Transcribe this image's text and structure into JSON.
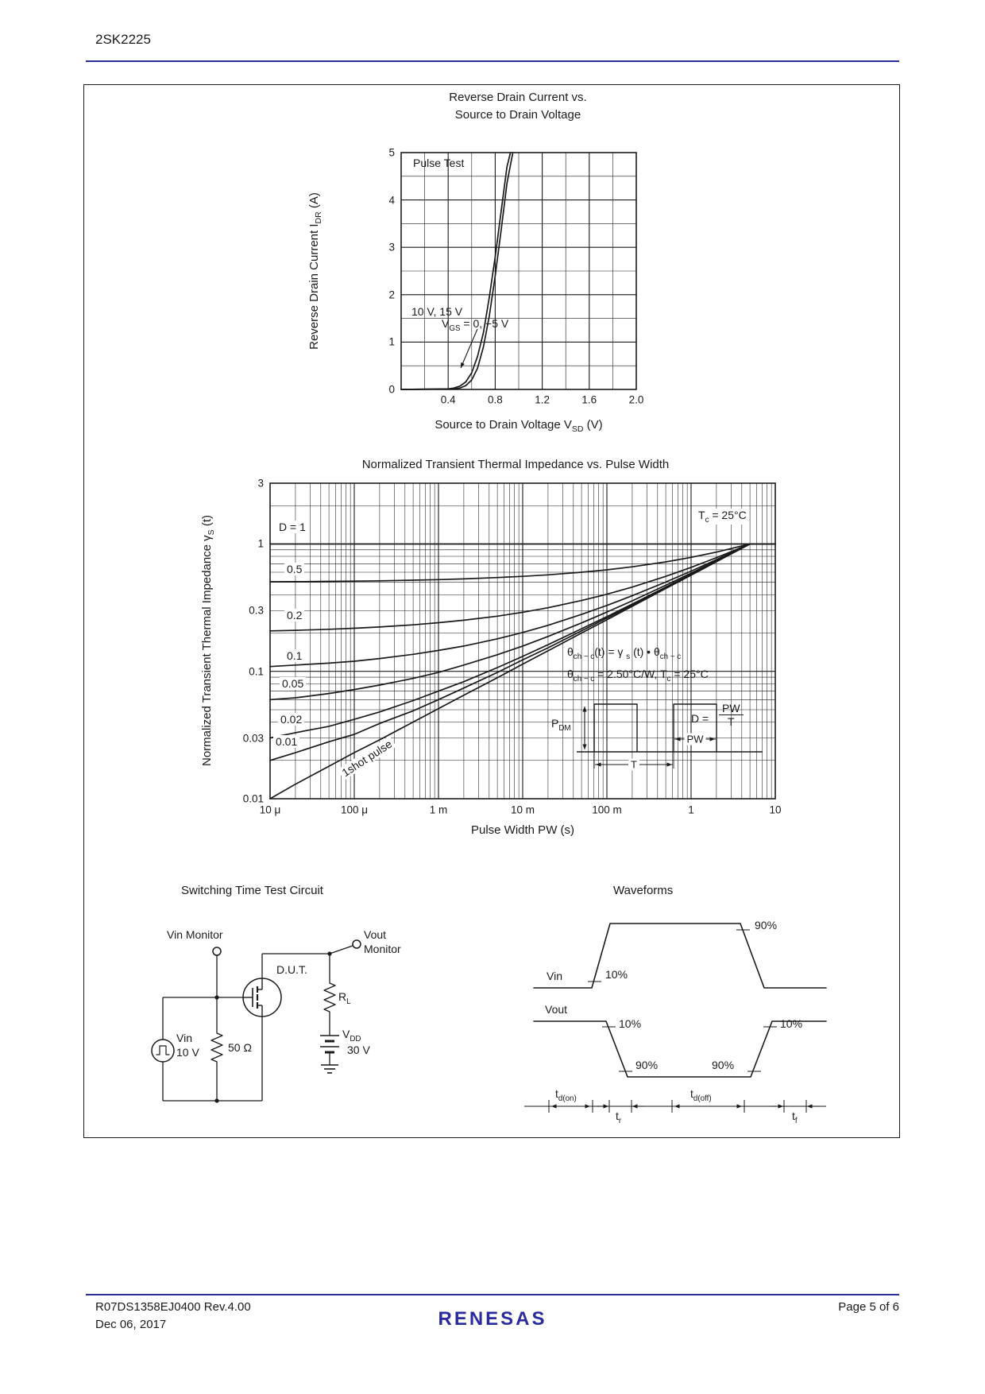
{
  "header": {
    "title": "2SK2225"
  },
  "footer": {
    "doc": "R07DS1358EJ0400  Rev.4.00",
    "date": "Dec 06, 2017",
    "brand": "RENESAS",
    "page": "Page 5 of 6"
  },
  "colors": {
    "accent": "#2b2ba0",
    "ink": "#1a1a1a"
  },
  "chart_data": [
    {
      "type": "line",
      "title_line1": "Reverse Drain Current vs.",
      "title_line2": "Source to Drain Voltage",
      "xlabel": {
        "pre": "Source to Drain Voltage  V",
        "sub": "SD",
        "post": "  (V)"
      },
      "ylabel": {
        "pre": "Reverse Drain Current  I",
        "sub": "DR",
        "post": "  (A)"
      },
      "xlim": [
        0,
        2.0
      ],
      "ylim": [
        0,
        5
      ],
      "xticks": [
        0.4,
        0.8,
        1.2,
        1.6,
        2.0
      ],
      "yticks": [
        0,
        1,
        2,
        3,
        4,
        5
      ],
      "annotations": {
        "pulse_test": "Pulse Test",
        "vgs_on": "10 V, 15 V",
        "vgs_off": {
          "pre": "V",
          "sub": "GS",
          "post": " = 0, −5 V"
        }
      },
      "series": [
        {
          "name": "VGS = 10 V, 15 V",
          "x": [
            0,
            0.4,
            0.45,
            0.5,
            0.55,
            0.6,
            0.65,
            0.7,
            0.75,
            0.8,
            0.85,
            0.9,
            0.93
          ],
          "y": [
            0,
            0.01,
            0.03,
            0.07,
            0.16,
            0.35,
            0.7,
            1.2,
            1.95,
            2.8,
            3.75,
            4.7,
            5.0
          ]
        },
        {
          "name": "VGS = 0 V, −5 V",
          "x": [
            0,
            0.45,
            0.5,
            0.55,
            0.6,
            0.65,
            0.7,
            0.75,
            0.8,
            0.85,
            0.9,
            0.95
          ],
          "y": [
            0,
            0.01,
            0.03,
            0.08,
            0.2,
            0.45,
            0.9,
            1.55,
            2.4,
            3.35,
            4.35,
            5.0
          ]
        }
      ]
    },
    {
      "type": "line",
      "xscale": "log",
      "yscale": "log",
      "title": "Normalized Transient Thermal Impedance vs. Pulse Width",
      "xlabel": "Pulse Width  PW  (s)",
      "ylabel": {
        "pre": "Normalized Transient Thermal Impedance  γ",
        "sub": "S",
        "post": "  (t)"
      },
      "xlim": [
        1e-05,
        10
      ],
      "ylim": [
        0.01,
        3
      ],
      "xtick_values": [
        1e-05,
        0.0001,
        0.001,
        0.01,
        0.1,
        1,
        10
      ],
      "xtick_labels": [
        "10 μ",
        "100 μ",
        "1 m",
        "10 m",
        "100 m",
        "1",
        "10"
      ],
      "ytick_values": [
        3,
        1,
        0.3,
        0.1,
        0.03,
        0.01
      ],
      "ytick_labels": [
        "3",
        "1",
        "0.3",
        "0.1",
        "0.03",
        "0.01"
      ],
      "condition": {
        "pre": "T",
        "sub": "c",
        "post": " = 25°C"
      },
      "curve_labels": [
        "D = 1",
        "0.5",
        "0.2",
        "0.1",
        "0.05",
        "0.02",
        "0.01"
      ],
      "oneshot_label": "1shot pulse",
      "formula1": {
        "a": "θ",
        "b": "ch − c",
        "c": "(t) = γ ",
        "d": "s",
        "e": " (t) • θ",
        "f": "ch − c"
      },
      "formula2": {
        "a": "θ",
        "b": "ch − c",
        "c": " = 2.50°C/W, T",
        "d": "c",
        "e": " = 25°C"
      },
      "inset": {
        "pdm_pre": "P",
        "pdm_sub": "DM",
        "pw": "PW",
        "t": "T",
        "d_label": "D =",
        "frac_num": "PW",
        "frac_den": "T"
      },
      "x": [
        1e-05,
        2e-05,
        5e-05,
        0.0001,
        0.0002,
        0.0005,
        0.001,
        0.002,
        0.005,
        0.01,
        0.02,
        0.05,
        0.1,
        0.2,
        0.5,
        1,
        2,
        5,
        10
      ],
      "series": [
        {
          "name": "D = 1",
          "values": [
            1,
            1,
            1,
            1,
            1,
            1,
            1,
            1,
            1,
            1,
            1,
            1,
            1,
            1,
            1,
            1,
            1,
            1,
            1
          ]
        },
        {
          "name": "D = 0.5",
          "values": [
            0.505,
            0.506,
            0.509,
            0.511,
            0.514,
            0.52,
            0.525,
            0.532,
            0.545,
            0.557,
            0.572,
            0.6,
            0.627,
            0.662,
            0.723,
            0.785,
            0.863,
            1.0,
            1.0
          ]
        },
        {
          "name": "D = 0.2",
          "values": [
            0.208,
            0.21,
            0.214,
            0.218,
            0.223,
            0.232,
            0.241,
            0.252,
            0.271,
            0.291,
            0.316,
            0.36,
            0.403,
            0.459,
            0.557,
            0.655,
            0.781,
            1.0,
            1.0
          ]
        },
        {
          "name": "D = 0.1",
          "values": [
            0.109,
            0.112,
            0.116,
            0.12,
            0.126,
            0.136,
            0.146,
            0.158,
            0.18,
            0.202,
            0.23,
            0.28,
            0.329,
            0.392,
            0.502,
            0.612,
            0.753,
            1.0,
            1.0
          ]
        },
        {
          "name": "D = 0.05",
          "values": [
            0.06,
            0.062,
            0.067,
            0.072,
            0.078,
            0.088,
            0.098,
            0.112,
            0.135,
            0.158,
            0.188,
            0.24,
            0.292,
            0.358,
            0.474,
            0.591,
            0.739,
            1.0,
            1.0
          ]
        },
        {
          "name": "D = 0.02",
          "values": [
            0.03,
            0.033,
            0.037,
            0.042,
            0.048,
            0.059,
            0.07,
            0.083,
            0.107,
            0.131,
            0.162,
            0.216,
            0.269,
            0.338,
            0.458,
            0.578,
            0.731,
            1.0,
            1.0
          ]
        },
        {
          "name": "D = 0.01",
          "values": [
            0.02,
            0.023,
            0.028,
            0.032,
            0.039,
            0.049,
            0.06,
            0.074,
            0.098,
            0.123,
            0.153,
            0.208,
            0.262,
            0.331,
            0.452,
            0.574,
            0.728,
            1.0,
            1.0
          ]
        },
        {
          "name": "1 shot pulse",
          "values": [
            0.01,
            0.013,
            0.018,
            0.023,
            0.029,
            0.04,
            0.051,
            0.065,
            0.089,
            0.114,
            0.145,
            0.2,
            0.254,
            0.324,
            0.447,
            0.569,
            0.726,
            1.0,
            1.0
          ]
        }
      ]
    }
  ],
  "circuit": {
    "title": "Switching Time Test Circuit",
    "vin_monitor": "Vin Monitor",
    "vout": "Vout",
    "monitor": "Monitor",
    "dut": "D.U.T.",
    "rl_pre": "R",
    "rl_sub": "L",
    "vin": "Vin",
    "vin_value": "10 V",
    "r_value": "50 Ω",
    "vdd_pre": "V",
    "vdd_sub": "DD",
    "vdd_value": "30 V"
  },
  "waveforms": {
    "title": "Waveforms",
    "vin": "Vin",
    "vout": "Vout",
    "p10": "10%",
    "p90": "90%",
    "td_on_pre": "t",
    "td_on_sub": "d(on)",
    "tr_pre": "t",
    "tr_sub": "r",
    "td_off_pre": "t",
    "td_off_sub": "d(off)",
    "tf_pre": "t",
    "tf_sub": "f"
  }
}
